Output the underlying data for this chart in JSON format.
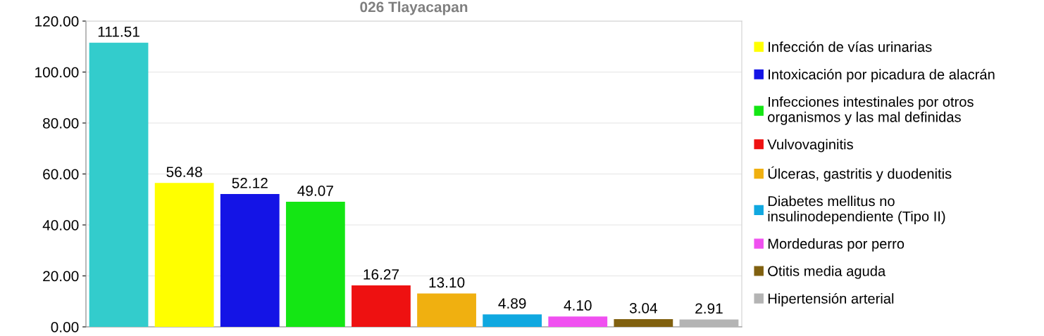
{
  "chart_data": {
    "type": "bar",
    "title": "026 Tlayacapan",
    "categories": [
      null,
      null,
      null,
      null,
      null,
      null,
      null,
      null,
      null,
      null
    ],
    "series": [
      {
        "color": "#33cccc",
        "values": [
          111.51,
          null,
          null,
          null,
          null,
          null,
          null,
          null,
          null,
          null
        ],
        "value_labels": [
          "111.51",
          null,
          null,
          null,
          null,
          null,
          null,
          null,
          null,
          null
        ]
      },
      {
        "name": "Infección de vías urinarias",
        "color": "#ffff00",
        "values": [
          null,
          56.48,
          null,
          null,
          null,
          null,
          null,
          null,
          null,
          null
        ],
        "value_labels": [
          null,
          "56.48",
          null,
          null,
          null,
          null,
          null,
          null,
          null,
          null
        ]
      },
      {
        "name": "Intoxicación por picadura de alacrán",
        "color": "#1414e6",
        "values": [
          null,
          null,
          52.12,
          null,
          null,
          null,
          null,
          null,
          null,
          null
        ],
        "value_labels": [
          null,
          null,
          "52.12",
          null,
          null,
          null,
          null,
          null,
          null,
          null
        ]
      },
      {
        "name": "Infecciones intestinales por otros\norganismos y las mal definidas",
        "color": "#14e614",
        "values": [
          null,
          null,
          null,
          49.07,
          null,
          null,
          null,
          null,
          null,
          null
        ],
        "value_labels": [
          null,
          null,
          null,
          "49.07",
          null,
          null,
          null,
          null,
          null,
          null
        ]
      },
      {
        "name": "Vulvovaginitis",
        "color": "#ee1111",
        "values": [
          null,
          null,
          null,
          null,
          16.27,
          null,
          null,
          null,
          null,
          null
        ],
        "value_labels": [
          null,
          null,
          null,
          null,
          "16.27",
          null,
          null,
          null,
          null,
          null
        ]
      },
      {
        "name": "Úlceras, gastritis y duodenitis",
        "color": "#f0b010",
        "values": [
          null,
          null,
          null,
          null,
          null,
          13.1,
          null,
          null,
          null,
          null
        ],
        "value_labels": [
          null,
          null,
          null,
          null,
          null,
          "13.10",
          null,
          null,
          null,
          null
        ]
      },
      {
        "name": "Diabetes mellitus no\ninsulinodependiente (Tipo II)",
        "color": "#10a8e0",
        "values": [
          null,
          null,
          null,
          null,
          null,
          null,
          4.89,
          null,
          null,
          null
        ],
        "value_labels": [
          null,
          null,
          null,
          null,
          null,
          null,
          "4.89",
          null,
          null,
          null
        ]
      },
      {
        "name": "Mordeduras por perro",
        "color": "#f050f0",
        "values": [
          null,
          null,
          null,
          null,
          null,
          null,
          null,
          4.1,
          null,
          null
        ],
        "value_labels": [
          null,
          null,
          null,
          null,
          null,
          null,
          null,
          "4.10",
          null,
          null
        ]
      },
      {
        "name": "Otitis media aguda",
        "color": "#80600f",
        "values": [
          null,
          null,
          null,
          null,
          null,
          null,
          null,
          null,
          3.04,
          null
        ],
        "value_labels": [
          null,
          null,
          null,
          null,
          null,
          null,
          null,
          null,
          "3.04",
          null
        ]
      },
      {
        "name": "Hipertensión arterial",
        "color": "#b4b4b4",
        "values": [
          null,
          null,
          null,
          null,
          null,
          null,
          null,
          null,
          null,
          2.91
        ],
        "value_labels": [
          null,
          null,
          null,
          null,
          null,
          null,
          null,
          null,
          null,
          "2.91"
        ]
      }
    ],
    "ylim": [
      0,
      120
    ],
    "yticks": [
      {
        "value": 0,
        "label": "0.00"
      },
      {
        "value": 20,
        "label": "20.00"
      },
      {
        "value": 40,
        "label": "40.00"
      },
      {
        "value": 60,
        "label": "60.00"
      },
      {
        "value": 80,
        "label": "80.00"
      },
      {
        "value": 100,
        "label": "100.00"
      },
      {
        "value": 120,
        "label": "120.00"
      }
    ],
    "grid": "y",
    "legend": "right"
  }
}
